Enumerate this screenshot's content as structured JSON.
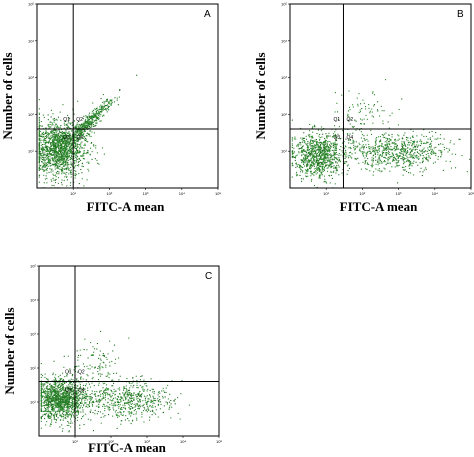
{
  "chart_data": [
    {
      "type": "scatter",
      "panel": "A",
      "xlabel": "FITC-A mean",
      "ylabel": "Number of cells",
      "x_scale": "log",
      "y_scale": "log",
      "xlim": [
        1,
        100000
      ],
      "ylim": [
        1,
        100000
      ],
      "gate": {
        "x": 10,
        "y": 40
      },
      "quadrant_labels": [
        "Q1",
        "Q2",
        "Q3",
        "Q4"
      ],
      "tick_labels": [
        "10⁰",
        "10¹",
        "10²",
        "10³",
        "10⁴",
        "10⁵"
      ],
      "color": "#2e8b2e",
      "clusters": [
        {
          "x": 4,
          "y": 12,
          "spread_x": 0.38,
          "spread_y": 0.38,
          "n": 1500
        },
        {
          "x": 25,
          "y": 60,
          "spread_x": 0.35,
          "spread_y": 0.3,
          "n": 450,
          "correlated": true
        }
      ]
    },
    {
      "type": "scatter",
      "panel": "B",
      "xlabel": "FITC-A mean",
      "ylabel": "Number of cells",
      "x_scale": "log",
      "y_scale": "log",
      "xlim": [
        1,
        100000
      ],
      "ylim": [
        1,
        100000
      ],
      "gate": {
        "x": 30,
        "y": 40
      },
      "quadrant_labels": [
        "Q1",
        "Q2",
        "Q3",
        "Q4"
      ],
      "tick_labels": [
        "10⁰",
        "10¹",
        "10²",
        "10³",
        "10⁴",
        "10⁵"
      ],
      "color": "#2e8b2e",
      "clusters": [
        {
          "x": 6,
          "y": 8,
          "spread_x": 0.35,
          "spread_y": 0.3,
          "n": 900
        },
        {
          "x": 800,
          "y": 10,
          "spread_x": 0.7,
          "spread_y": 0.25,
          "n": 700
        },
        {
          "x": 100,
          "y": 120,
          "spread_x": 0.45,
          "spread_y": 0.35,
          "n": 90
        }
      ]
    },
    {
      "type": "scatter",
      "panel": "C",
      "xlabel": "FITC-A mean",
      "ylabel": "Number of cells",
      "x_scale": "log",
      "y_scale": "log",
      "xlim": [
        1,
        100000
      ],
      "ylim": [
        1,
        100000
      ],
      "gate": {
        "x": 10,
        "y": 40
      },
      "quadrant_labels": [
        "Q1",
        "Q2",
        "Q3",
        "Q4"
      ],
      "tick_labels": [
        "10⁰",
        "10¹",
        "10²",
        "10³",
        "10⁴",
        "10⁵"
      ],
      "color": "#2e8b2e",
      "clusters": [
        {
          "x": 4,
          "y": 12,
          "spread_x": 0.35,
          "spread_y": 0.3,
          "n": 1300
        },
        {
          "x": 300,
          "y": 12,
          "spread_x": 0.6,
          "spread_y": 0.28,
          "n": 550
        },
        {
          "x": 40,
          "y": 150,
          "spread_x": 0.35,
          "spread_y": 0.35,
          "n": 110
        }
      ]
    }
  ]
}
